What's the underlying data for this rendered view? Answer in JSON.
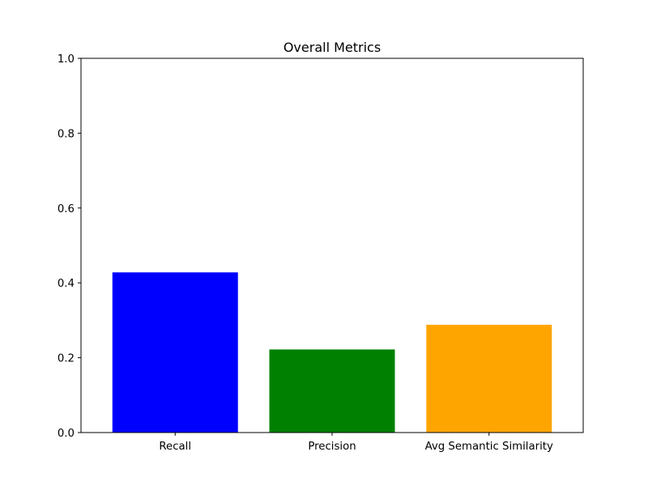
{
  "chart_data": {
    "type": "bar",
    "title": "Overall Metrics",
    "xlabel": "",
    "ylabel": "",
    "categories": [
      "Recall",
      "Precision",
      "Avg Semantic Similarity"
    ],
    "values": [
      0.428,
      0.222,
      0.288
    ],
    "colors": [
      "#0000ff",
      "#008000",
      "#ffa500"
    ],
    "ylim": [
      0.0,
      1.0
    ],
    "yticks": [
      0.0,
      0.2,
      0.4,
      0.6,
      0.8,
      1.0
    ],
    "ytick_labels": [
      "0.0",
      "0.2",
      "0.4",
      "0.6",
      "0.8",
      "1.0"
    ],
    "grid": false,
    "legend": false
  }
}
